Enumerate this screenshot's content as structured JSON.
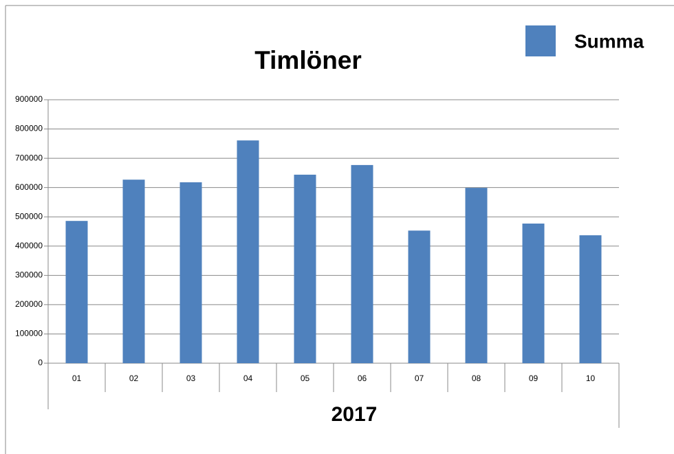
{
  "chart_data": {
    "type": "bar",
    "title": "Timlöner",
    "xlabel": "2017",
    "categories": [
      "01",
      "02",
      "03",
      "04",
      "05",
      "06",
      "07",
      "08",
      "09",
      "10"
    ],
    "series": [
      {
        "name": "Summa",
        "color": "#4f81bd",
        "values": [
          486000,
          627000,
          618000,
          761000,
          644000,
          677000,
          453000,
          599000,
          477000,
          437000
        ]
      }
    ],
    "ylim": [
      0,
      900000
    ],
    "yticks": [
      0,
      100000,
      200000,
      300000,
      400000,
      500000,
      600000,
      700000,
      800000,
      900000
    ],
    "grid": true,
    "legend": "top-right"
  }
}
